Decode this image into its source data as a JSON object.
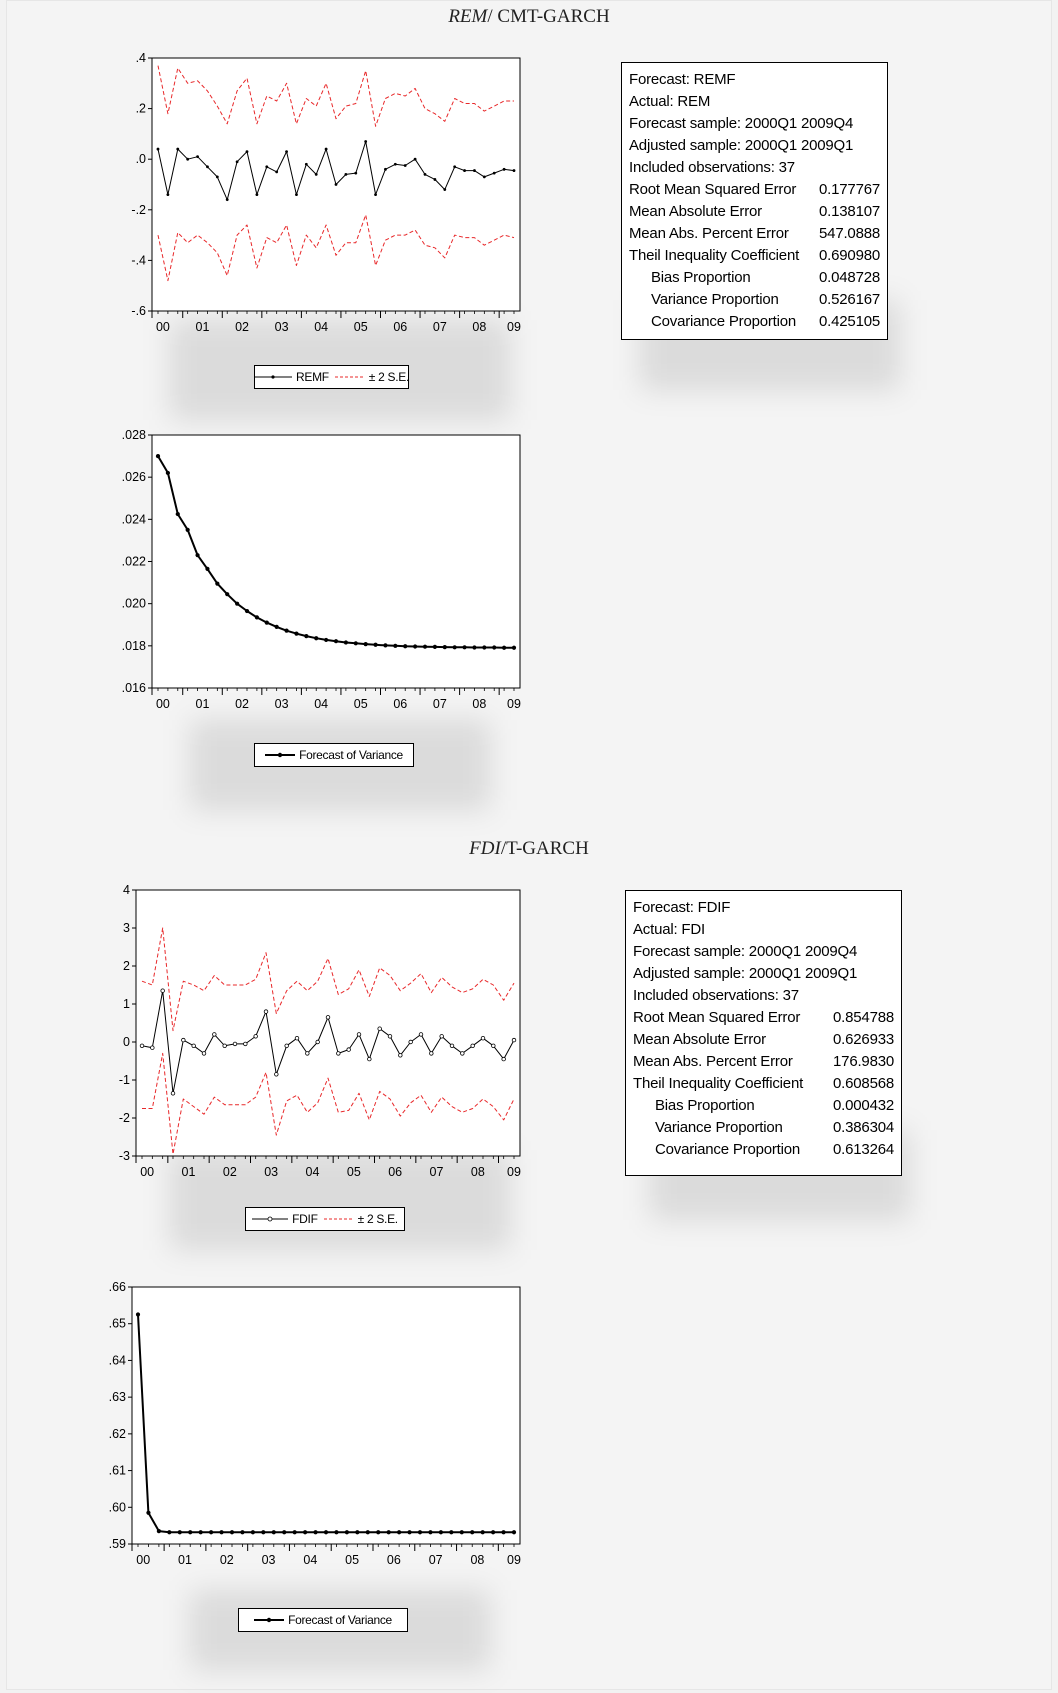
{
  "sections": [
    {
      "title_italic": "REM",
      "title_rest": "/ CMT-GARCH"
    },
    {
      "title_italic": "FDI",
      "title_rest": "/T-GARCH"
    }
  ],
  "stats_rem": {
    "lines": [
      {
        "label": "Forecast: REMF",
        "value": ""
      },
      {
        "label": "Actual: REM",
        "value": ""
      },
      {
        "label": "Forecast sample: 2000Q1 2009Q4",
        "value": ""
      },
      {
        "label": "Adjusted sample: 2000Q1 2009Q1",
        "value": ""
      },
      {
        "label": "Included observations: 37",
        "value": ""
      },
      {
        "label": "Root Mean Squared Error",
        "value": "0.177767"
      },
      {
        "label": "Mean Absolute Error",
        "value": "0.138107"
      },
      {
        "label": "Mean Abs. Percent Error",
        "value": "547.0888"
      },
      {
        "label": "Theil Inequality Coefficient",
        "value": "0.690980"
      },
      {
        "label": "Bias Proportion",
        "value": "0.048728"
      },
      {
        "label": "Variance Proportion",
        "value": "0.526167"
      },
      {
        "label": "Covariance Proportion",
        "value": "0.425105"
      }
    ]
  },
  "stats_fdi": {
    "lines": [
      {
        "label": "Forecast: FDIF",
        "value": ""
      },
      {
        "label": "Actual: FDI",
        "value": ""
      },
      {
        "label": "Forecast sample: 2000Q1 2009Q4",
        "value": ""
      },
      {
        "label": "Adjusted sample: 2000Q1 2009Q1",
        "value": ""
      },
      {
        "label": "Included observations: 37",
        "value": ""
      },
      {
        "label": "Root Mean Squared Error",
        "value": "0.854788"
      },
      {
        "label": "Mean Absolute Error",
        "value": "0.626933"
      },
      {
        "label": "Mean Abs. Percent Error",
        "value": "176.9830"
      },
      {
        "label": "Theil Inequality Coefficient",
        "value": "0.608568"
      },
      {
        "label": "Bias Proportion",
        "value": "0.000432"
      },
      {
        "label": "Variance Proportion",
        "value": "0.386304"
      },
      {
        "label": "Covariance Proportion",
        "value": "0.613264"
      }
    ]
  },
  "chart_data": [
    {
      "type": "line",
      "x_tick_labels": [
        "00",
        "01",
        "02",
        "03",
        "04",
        "05",
        "06",
        "07",
        "08",
        "09"
      ],
      "y_tick_labels": [
        ".4",
        ".2",
        ".0",
        "-.2",
        "-.4",
        "-.6"
      ],
      "ylim": [
        -0.6,
        0.4
      ],
      "yticks": [
        0.4,
        0.2,
        0.0,
        -0.2,
        -0.4,
        -0.6
      ],
      "legend": [
        "REMF",
        "± 2 S.E."
      ],
      "series": [
        {
          "name": "REMF",
          "color": "#000000",
          "values": [
            0.04,
            -0.14,
            0.04,
            0.0,
            0.01,
            -0.03,
            -0.07,
            -0.16,
            -0.01,
            0.03,
            -0.14,
            -0.03,
            -0.05,
            0.03,
            -0.14,
            -0.02,
            -0.06,
            0.04,
            -0.1,
            -0.06,
            -0.055,
            0.07,
            -0.14,
            -0.04,
            -0.02,
            -0.025,
            0.0,
            -0.06,
            -0.08,
            -0.12,
            -0.03,
            -0.045,
            -0.045,
            -0.07,
            -0.055,
            -0.04,
            -0.045
          ]
        },
        {
          "name": "± 2 S.E.",
          "color": "#e8282a",
          "values": [
            0.37,
            0.18,
            0.36,
            0.3,
            0.31,
            0.27,
            0.21,
            0.14,
            0.27,
            0.32,
            0.14,
            0.25,
            0.23,
            0.3,
            0.14,
            0.24,
            0.21,
            0.3,
            0.16,
            0.21,
            0.22,
            0.35,
            0.13,
            0.24,
            0.26,
            0.25,
            0.28,
            0.2,
            0.18,
            0.15,
            0.24,
            0.22,
            0.22,
            0.19,
            0.21,
            0.23,
            0.23
          ]
        },
        {
          "name": "± 2 S.E.",
          "color": "#e8282a",
          "values": [
            -0.3,
            -0.48,
            -0.29,
            -0.33,
            -0.3,
            -0.33,
            -0.37,
            -0.46,
            -0.3,
            -0.26,
            -0.43,
            -0.31,
            -0.33,
            -0.26,
            -0.42,
            -0.3,
            -0.35,
            -0.26,
            -0.38,
            -0.33,
            -0.33,
            -0.22,
            -0.42,
            -0.32,
            -0.3,
            -0.3,
            -0.28,
            -0.34,
            -0.35,
            -0.39,
            -0.3,
            -0.31,
            -0.31,
            -0.34,
            -0.32,
            -0.3,
            -0.31
          ]
        }
      ]
    },
    {
      "type": "line",
      "x_tick_labels": [
        "00",
        "01",
        "02",
        "03",
        "04",
        "05",
        "06",
        "07",
        "08",
        "09"
      ],
      "y_tick_labels": [
        ".028",
        ".026",
        ".024",
        ".022",
        ".020",
        ".018",
        ".016"
      ],
      "ylim": [
        0.016,
        0.028
      ],
      "yticks": [
        0.028,
        0.026,
        0.024,
        0.022,
        0.02,
        0.018,
        0.016
      ],
      "legend": [
        "Forecast of Variance"
      ],
      "series": [
        {
          "name": "Forecast of Variance",
          "color": "#000000",
          "values": [
            0.027,
            0.0262,
            0.02425,
            0.0235,
            0.0223,
            0.02165,
            0.02095,
            0.02045,
            0.02,
            0.01965,
            0.01935,
            0.0191,
            0.0189,
            0.01872,
            0.01858,
            0.01846,
            0.01836,
            0.01828,
            0.01822,
            0.01816,
            0.01812,
            0.01808,
            0.01805,
            0.01802,
            0.018,
            0.01798,
            0.01797,
            0.01796,
            0.01795,
            0.01794,
            0.01793,
            0.01793,
            0.01792,
            0.01792,
            0.01792,
            0.01791,
            0.01791
          ]
        }
      ]
    },
    {
      "type": "line",
      "x_tick_labels": [
        "00",
        "01",
        "02",
        "03",
        "04",
        "05",
        "06",
        "07",
        "08",
        "09"
      ],
      "y_tick_labels": [
        "4",
        "3",
        "2",
        "1",
        "0",
        "-1",
        "-2",
        "-3"
      ],
      "ylim": [
        -3,
        4
      ],
      "yticks": [
        4,
        3,
        2,
        1,
        0,
        -1,
        -2,
        -3
      ],
      "legend": [
        "FDIF",
        "± 2 S.E."
      ],
      "series": [
        {
          "name": "FDIF",
          "color": "#000000",
          "values": [
            -0.1,
            -0.15,
            1.35,
            -1.35,
            0.05,
            -0.1,
            -0.3,
            0.2,
            -0.1,
            -0.05,
            -0.05,
            0.15,
            0.8,
            -0.85,
            -0.1,
            0.1,
            -0.3,
            0.0,
            0.65,
            -0.3,
            -0.2,
            0.2,
            -0.45,
            0.35,
            0.15,
            -0.35,
            0.0,
            0.2,
            -0.3,
            0.15,
            -0.1,
            -0.3,
            -0.1,
            0.1,
            -0.1,
            -0.45,
            0.05
          ]
        },
        {
          "name": "± 2 S.E.",
          "color": "#e8282a",
          "values": [
            1.6,
            1.5,
            3.0,
            0.3,
            1.6,
            1.5,
            1.35,
            1.75,
            1.5,
            1.5,
            1.5,
            1.65,
            2.35,
            0.75,
            1.35,
            1.6,
            1.35,
            1.6,
            2.2,
            1.25,
            1.4,
            1.9,
            1.2,
            1.95,
            1.75,
            1.35,
            1.55,
            1.8,
            1.3,
            1.7,
            1.45,
            1.3,
            1.4,
            1.65,
            1.5,
            1.1,
            1.55
          ]
        },
        {
          "name": "± 2 S.E.",
          "color": "#e8282a",
          "values": [
            -1.75,
            -1.75,
            -0.3,
            -2.95,
            -1.5,
            -1.7,
            -1.9,
            -1.45,
            -1.65,
            -1.65,
            -1.65,
            -1.45,
            -0.8,
            -2.45,
            -1.55,
            -1.4,
            -1.85,
            -1.6,
            -0.95,
            -1.85,
            -1.8,
            -1.35,
            -2.05,
            -1.3,
            -1.5,
            -1.95,
            -1.6,
            -1.4,
            -1.85,
            -1.45,
            -1.7,
            -1.85,
            -1.75,
            -1.5,
            -1.7,
            -2.05,
            -1.5
          ]
        }
      ]
    },
    {
      "type": "line",
      "x_tick_labels": [
        "00",
        "01",
        "02",
        "03",
        "04",
        "05",
        "06",
        "07",
        "08",
        "09"
      ],
      "y_tick_labels": [
        ".66",
        ".65",
        ".64",
        ".63",
        ".62",
        ".61",
        ".60",
        ".59"
      ],
      "ylim": [
        0.59,
        0.66
      ],
      "yticks": [
        0.66,
        0.65,
        0.64,
        0.63,
        0.62,
        0.61,
        0.6,
        0.59
      ],
      "legend": [
        "Forecast of Variance"
      ],
      "series": [
        {
          "name": "Forecast of Variance",
          "color": "#000000",
          "values": [
            0.6525,
            0.5985,
            0.5935,
            0.5932,
            0.5932,
            0.5932,
            0.5932,
            0.5932,
            0.5932,
            0.5932,
            0.5932,
            0.5932,
            0.5932,
            0.5932,
            0.5932,
            0.5932,
            0.5932,
            0.5932,
            0.5932,
            0.5932,
            0.5932,
            0.5932,
            0.5932,
            0.5932,
            0.5932,
            0.5932,
            0.5932,
            0.5932,
            0.5932,
            0.5932,
            0.5932,
            0.5932,
            0.5932,
            0.5932,
            0.5932,
            0.5932,
            0.5932
          ]
        }
      ]
    }
  ]
}
